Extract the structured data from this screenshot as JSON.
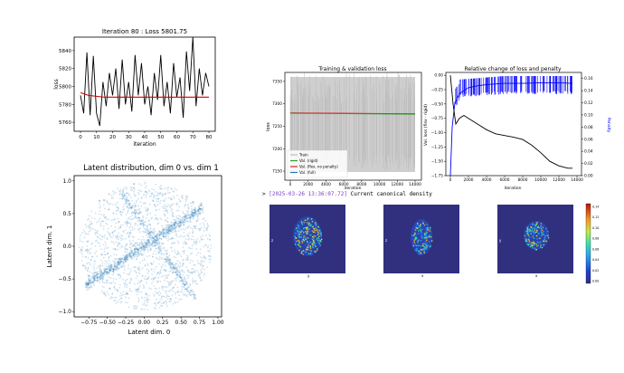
{
  "loss_plot": {
    "title": "Iteration   80 : Loss  5801.75",
    "xlabel": "iteration",
    "ylabel": "loss",
    "x_ticks": [
      "0",
      "10",
      "20",
      "30",
      "40",
      "50",
      "60",
      "70",
      "80"
    ],
    "y_ticks": [
      "5760",
      "5780",
      "5800",
      "5820",
      "5840"
    ]
  },
  "latent_plot": {
    "title": "Latent distribution, dim 0 vs. dim 1",
    "xlabel": "Latent dim. 0",
    "ylabel": "Latent dim. 1",
    "x_ticks": [
      "−0.75",
      "−0.50",
      "−0.25",
      "0.00",
      "0.25",
      "0.50",
      "0.75",
      "1.00"
    ],
    "y_ticks": [
      "1.0",
      "0.5",
      "0.0",
      "−0.5",
      "−1.0"
    ]
  },
  "train_val_plot": {
    "title": "Training & validation loss",
    "xlabel": "iteration",
    "ylabel": "loss",
    "x_ticks": [
      "0",
      "2000",
      "4000",
      "6000",
      "8000",
      "10000",
      "12000",
      "14000"
    ],
    "y_ticks": [
      "7350",
      "7300",
      "7250",
      "7200",
      "7150"
    ],
    "legend": [
      "Train",
      "Val. (rigid)",
      "Val. (flex, no penalty)",
      "Val. (full)"
    ]
  },
  "relative_plot": {
    "title": "Relative change of loss and penalty",
    "xlabel": "iteration",
    "ylabel_left": "Val. loss (flex - rigid)",
    "ylabel_right": "Penalty",
    "x_ticks": [
      "0",
      "2000",
      "4000",
      "6000",
      "8000",
      "10000",
      "12000",
      "14000"
    ],
    "y_ticks_left": [
      "0.00",
      "−0.25",
      "−0.50",
      "−0.75",
      "−1.00",
      "−1.25",
      "−1.50",
      "−1.75"
    ],
    "y_ticks_right": [
      "0.16",
      "0.14",
      "0.12",
      "0.10",
      "0.08",
      "0.06",
      "0.04",
      "0.02",
      "0.00"
    ]
  },
  "density": {
    "prompt": ">",
    "timestamp": "[2025-03-26 13:36:07.72]",
    "label": "Current canonical density",
    "axis_z": "z",
    "axis_y": "y",
    "axis_x": "x",
    "colorbar_ticks": [
      "0.14",
      "0.12",
      "0.10",
      "0.08",
      "0.06",
      "0.04",
      "0.02",
      "0.00"
    ]
  },
  "chart_data": [
    {
      "type": "line",
      "title": "Iteration   80 : Loss  5801.75",
      "xlabel": "iteration",
      "ylabel": "loss",
      "xlim": [
        0,
        80
      ],
      "ylim": [
        5750,
        5855
      ],
      "series": [
        {
          "color": "#000000",
          "x": [
            0,
            2,
            4,
            6,
            8,
            10,
            12,
            14,
            16,
            18,
            20,
            22,
            24,
            26,
            28,
            30,
            32,
            34,
            36,
            38,
            40,
            42,
            44,
            46,
            48,
            50,
            52,
            54,
            56,
            58,
            60,
            62,
            64,
            66,
            68,
            70,
            72,
            74,
            76,
            78,
            80
          ],
          "values": [
            5790,
            5770,
            5838,
            5768,
            5834,
            5770,
            5756,
            5805,
            5778,
            5815,
            5790,
            5820,
            5775,
            5830,
            5780,
            5805,
            5772,
            5835,
            5790,
            5826,
            5780,
            5800,
            5768,
            5815,
            5785,
            5835,
            5778,
            5805,
            5770,
            5826,
            5788,
            5810,
            5765,
            5839,
            5795,
            5855,
            5778,
            5820,
            5790,
            5815,
            5800
          ]
        },
        {
          "color": "#cc0000",
          "x": [
            0,
            5,
            10,
            15,
            20,
            30,
            40,
            50,
            60,
            70,
            80
          ],
          "values": [
            5793,
            5790,
            5789,
            5788,
            5788,
            5788,
            5788,
            5788,
            5788,
            5788,
            5788
          ]
        }
      ],
      "grid": false
    },
    {
      "type": "scatter",
      "title": "Latent distribution, dim 0 vs. dim 1",
      "xlabel": "Latent dim. 0",
      "ylabel": "Latent dim. 1",
      "xlim": [
        -0.95,
        1.05
      ],
      "ylim": [
        -1.08,
        1.08
      ],
      "series": [
        {
          "color": "#1f77b4",
          "distribution": "dense cloud, radius ~1, centered near (0,0)"
        }
      ]
    },
    {
      "type": "line",
      "title": "Training & validation loss",
      "xlabel": "iteration",
      "ylabel": "loss",
      "xlim": [
        0,
        14000
      ],
      "ylim": [
        7130,
        7370
      ],
      "series": [
        {
          "name": "Train",
          "color": "#c0c0c0",
          "range": [
            7150,
            7360
          ]
        },
        {
          "name": "Val. (rigid)",
          "color": "#2ca02c",
          "x": [
            0,
            14000
          ],
          "values": [
            7285,
            7283
          ]
        },
        {
          "name": "Val. (flex, no penalty)",
          "color": "#d62728",
          "x": [
            0,
            14000
          ],
          "values": [
            7285,
            7284
          ]
        },
        {
          "name": "Val. (full)",
          "color": "#1f77b4",
          "x": [
            0,
            14000
          ],
          "values": [
            7285,
            7284
          ]
        }
      ],
      "legend_position": "bottom-left"
    },
    {
      "type": "line",
      "title": "Relative change of loss and penalty",
      "xlabel": "iteration",
      "ylabel": "Val. loss (flex - rigid)",
      "xlim": [
        -500,
        14500
      ],
      "ylim": [
        -1.75,
        0.05
      ],
      "series": [
        {
          "color": "#000000",
          "x": [
            0,
            300,
            600,
            1000,
            1500,
            2000,
            3000,
            4000,
            5000,
            6000,
            7000,
            8000,
            9000,
            10000,
            11000,
            12000,
            13000,
            13500
          ],
          "values": [
            0.0,
            -0.5,
            -0.85,
            -0.75,
            -0.7,
            -0.75,
            -0.85,
            -0.95,
            -1.02,
            -1.05,
            -1.08,
            -1.12,
            -1.22,
            -1.35,
            -1.5,
            -1.58,
            -1.62,
            -1.62
          ]
        },
        {
          "color": "#0000ff",
          "axis": "right",
          "x": [
            0,
            200,
            500,
            1000,
            2000,
            3000,
            4000,
            6000,
            8000,
            10000,
            12000,
            13500
          ],
          "values": [
            0.0,
            0.08,
            0.12,
            0.135,
            0.145,
            0.148,
            0.15,
            0.152,
            0.152,
            0.153,
            0.153,
            0.152
          ]
        }
      ],
      "ylim_right": [
        0.0,
        0.17
      ]
    }
  ]
}
